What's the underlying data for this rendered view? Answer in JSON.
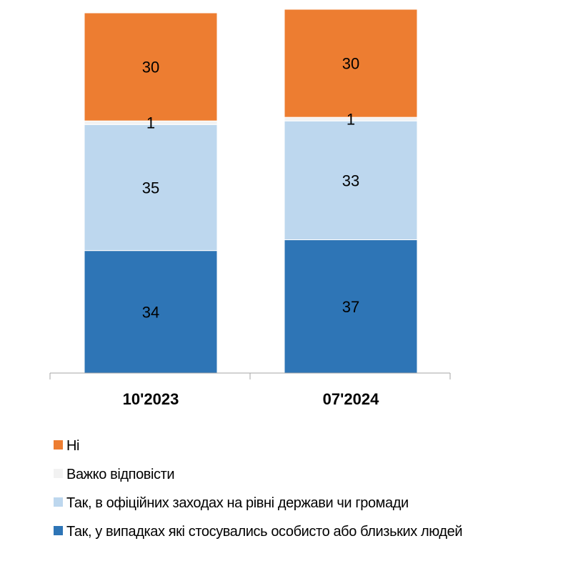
{
  "chart_data": {
    "type": "bar",
    "stacked": true,
    "title": "",
    "xlabel": "",
    "ylabel": "",
    "ylim": [
      0,
      100
    ],
    "grid": false,
    "legend_position": "bottom-left",
    "categories": [
      "10'2023",
      "07'2024"
    ],
    "series": [
      {
        "name": "Так, у випадках які стосувались особисто або близьких людей",
        "color": "#2E75B6",
        "values": [
          34,
          37
        ]
      },
      {
        "name": "Так, в офіційних заходах на рівні держави чи громади",
        "color": "#BDD7EE",
        "values": [
          35,
          33
        ]
      },
      {
        "name": "Важко відповісти",
        "color": "#F2F2F2",
        "values": [
          1,
          1
        ]
      },
      {
        "name": "Ні",
        "color": "#ED7D31",
        "values": [
          30,
          30
        ]
      }
    ],
    "legend_order": [
      3,
      2,
      1,
      0
    ]
  }
}
